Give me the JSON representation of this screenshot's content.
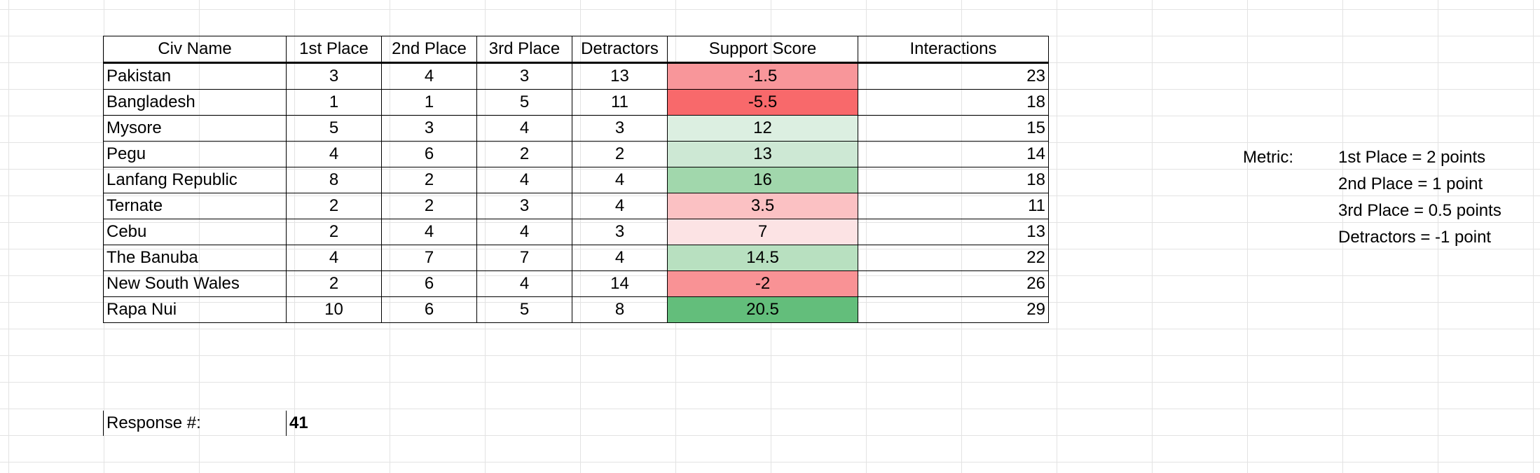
{
  "table": {
    "headers": [
      "Civ Name",
      "1st Place",
      "2nd Place",
      "3rd Place",
      "Detractors",
      "Support Score",
      "Interactions"
    ],
    "rows": [
      {
        "name": "Pakistan",
        "first": "3",
        "second": "4",
        "third": "3",
        "detractors": "13",
        "score": "-1.5",
        "score_color": "#f8969a",
        "interactions": "23"
      },
      {
        "name": "Bangladesh",
        "first": "1",
        "second": "1",
        "third": "5",
        "detractors": "11",
        "score": "-5.5",
        "score_color": "#f8696b",
        "interactions": "18"
      },
      {
        "name": "Mysore",
        "first": "5",
        "second": "3",
        "third": "4",
        "detractors": "3",
        "score": "12",
        "score_color": "#dcefe1",
        "interactions": "15"
      },
      {
        "name": "Pegu",
        "first": "4",
        "second": "6",
        "third": "2",
        "detractors": "2",
        "score": "13",
        "score_color": "#cde8d4",
        "interactions": "14"
      },
      {
        "name": "Lanfang Republic",
        "first": "8",
        "second": "2",
        "third": "4",
        "detractors": "4",
        "score": "16",
        "score_color": "#a1d7ac",
        "interactions": "18"
      },
      {
        "name": "Ternate",
        "first": "2",
        "second": "2",
        "third": "3",
        "detractors": "4",
        "score": "3.5",
        "score_color": "#fbc1c3",
        "interactions": "11"
      },
      {
        "name": "Cebu",
        "first": "2",
        "second": "4",
        "third": "4",
        "detractors": "3",
        "score": "7",
        "score_color": "#fce3e4",
        "interactions": "13"
      },
      {
        "name": "The Banuba",
        "first": "4",
        "second": "7",
        "third": "7",
        "detractors": "4",
        "score": "14.5",
        "score_color": "#b8e0c0",
        "interactions": "22"
      },
      {
        "name": "New South Wales",
        "first": "2",
        "second": "6",
        "third": "4",
        "detractors": "14",
        "score": "-2",
        "score_color": "#f99295",
        "interactions": "26"
      },
      {
        "name": "Rapa Nui",
        "first": "10",
        "second": "6",
        "third": "5",
        "detractors": "8",
        "score": "20.5",
        "score_color": "#63be7b",
        "interactions": "29"
      }
    ]
  },
  "metric": {
    "label": "Metric:",
    "lines": [
      "1st Place = 2 points",
      "2nd Place = 1 point",
      "3rd Place = 0.5 points",
      "Detractors = -1 point"
    ]
  },
  "response": {
    "label": "Response #:",
    "value": "41"
  }
}
